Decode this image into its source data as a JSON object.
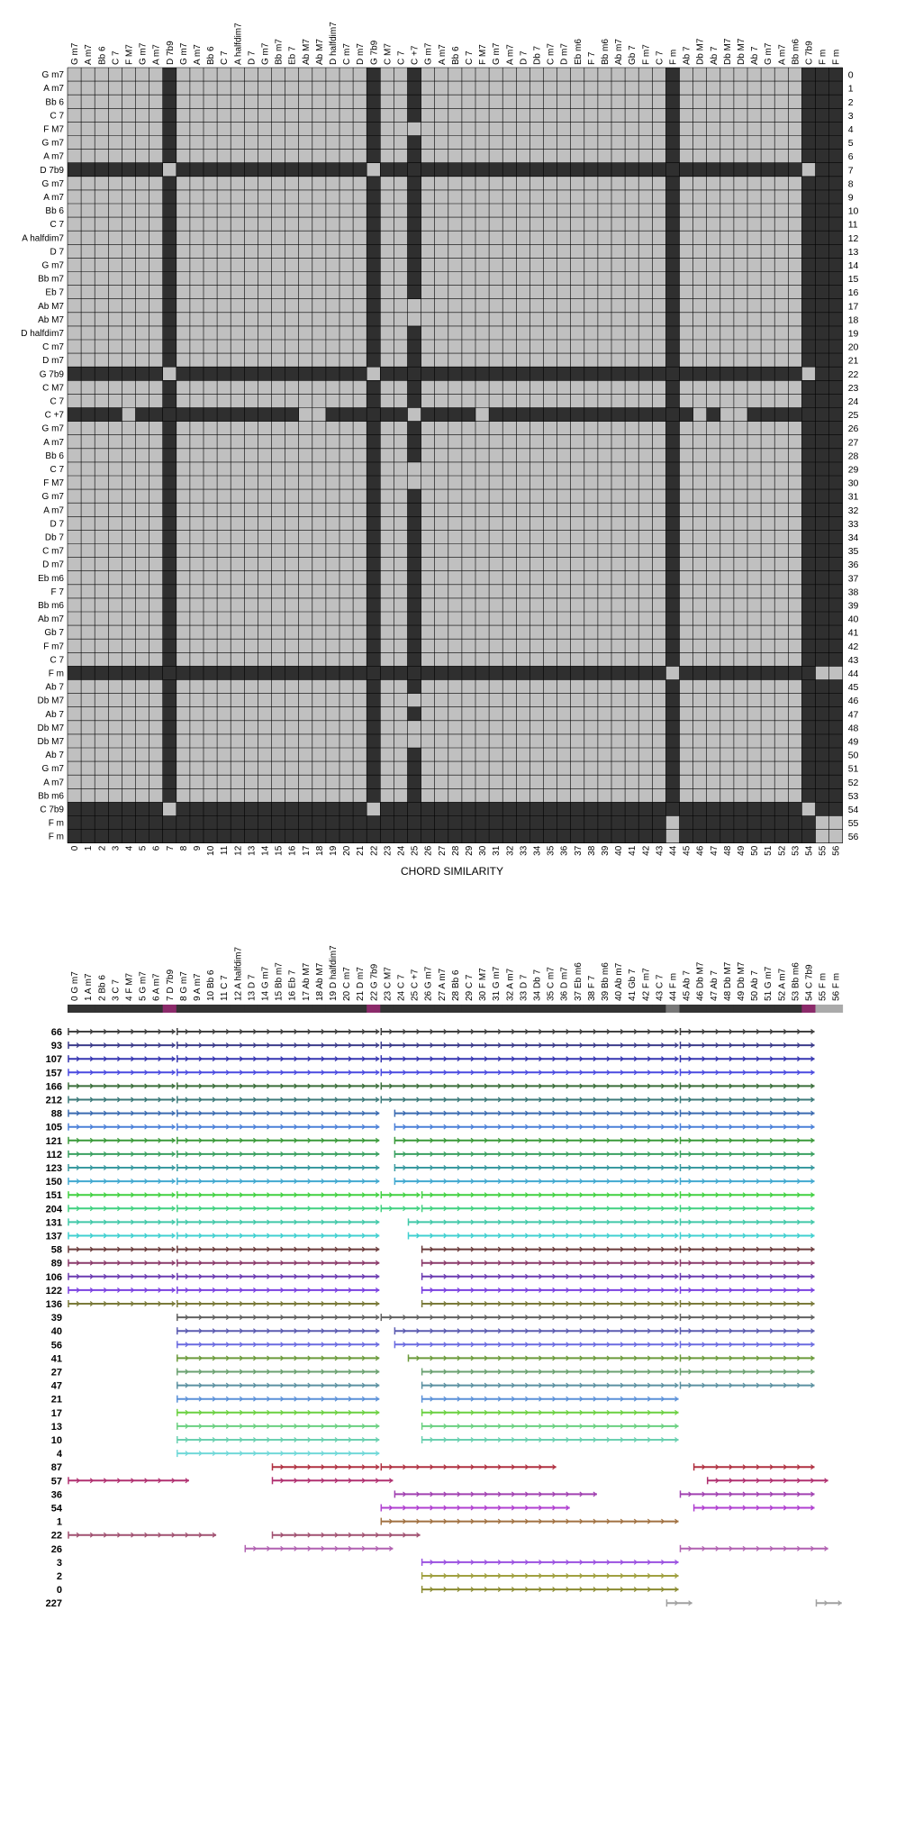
{
  "chart_data": [
    {
      "type": "heatmap",
      "title": "",
      "xlabel": "CHORD SIMILARITY",
      "ylabel": "",
      "chords": [
        "G m7",
        "A m7",
        "Bb 6",
        "C 7",
        "F M7",
        "G m7",
        "A m7",
        "D 7b9",
        "G m7",
        "A m7",
        "Bb 6",
        "C 7",
        "A halfdim7",
        "D 7",
        "G m7",
        "Bb m7",
        "Eb 7",
        "Ab M7",
        "Ab M7",
        "D halfdim7",
        "C m7",
        "D m7",
        "G 7b9",
        "C M7",
        "C 7",
        "C +7",
        "G m7",
        "A m7",
        "Bb 6",
        "C 7",
        "F M7",
        "G m7",
        "A m7",
        "D 7",
        "Db 7",
        "C m7",
        "D m7",
        "Eb m6",
        "F 7",
        "Bb m6",
        "Ab m7",
        "Gb 7",
        "F m7",
        "C 7",
        "F m",
        "Ab 7",
        "Db M7",
        "Ab 7",
        "Db M7",
        "Db M7",
        "Ab 7",
        "G m7",
        "A m7",
        "Bb m6",
        "C 7b9",
        "F m",
        "F m"
      ],
      "indices": [
        0,
        1,
        2,
        3,
        4,
        5,
        6,
        7,
        8,
        9,
        10,
        11,
        12,
        13,
        14,
        15,
        16,
        17,
        18,
        19,
        20,
        21,
        22,
        23,
        24,
        25,
        26,
        27,
        28,
        29,
        30,
        31,
        32,
        33,
        34,
        35,
        36,
        37,
        38,
        39,
        40,
        41,
        42,
        43,
        44,
        45,
        46,
        47,
        48,
        49,
        50,
        51,
        52,
        53,
        54,
        55,
        56
      ],
      "dark_rows_and_columns": [
        7,
        22,
        44,
        54,
        55,
        56
      ],
      "c_plus7_column_dark_rows": [
        0,
        1,
        2,
        3,
        5,
        6,
        7,
        8,
        9,
        10,
        11,
        12,
        13,
        14,
        15,
        16,
        19,
        20,
        21,
        22,
        23,
        24,
        26,
        27,
        28,
        31,
        32,
        33,
        34,
        35,
        36,
        37,
        38,
        39,
        40,
        41,
        42,
        43,
        44,
        45,
        47,
        50,
        51,
        52,
        53,
        54,
        55,
        56
      ],
      "c_plus7_row_light_columns": [
        4,
        17,
        18,
        25,
        30,
        46,
        48,
        49
      ],
      "light_cells_on_dark_bands": [
        [
          7,
          7
        ],
        [
          7,
          22
        ],
        [
          7,
          54
        ],
        [
          22,
          7
        ],
        [
          22,
          22
        ],
        [
          22,
          54
        ],
        [
          54,
          7
        ],
        [
          54,
          22
        ],
        [
          54,
          54
        ],
        [
          44,
          44
        ],
        [
          44,
          55
        ],
        [
          44,
          56
        ],
        [
          55,
          44
        ],
        [
          56,
          44
        ],
        [
          55,
          55
        ],
        [
          55,
          56
        ],
        [
          56,
          55
        ],
        [
          56,
          56
        ]
      ],
      "colors": {
        "match": "#c0c0c0",
        "no_match": "#2f2f2f",
        "gridline": "#000000"
      }
    },
    {
      "type": "arc",
      "title": "",
      "xlabel": "",
      "ylabel": "",
      "axis_labels": [
        "0 G m7",
        "1 A m7",
        "2 Bb 6",
        "3 C 7",
        "4 F M7",
        "5 G m7",
        "6 A m7",
        "7 D 7b9",
        "8 G m7",
        "9 A m7",
        "10 Bb 6",
        "11 C 7",
        "12 A halfdim7",
        "13 D 7",
        "14 G m7",
        "15 Bb m7",
        "16 Eb 7",
        "17 Ab M7",
        "18 Ab M7",
        "19 D halfdim7",
        "20 C m7",
        "21 D m7",
        "22 G 7b9",
        "23 C M7",
        "24 C 7",
        "25 C +7",
        "26 G m7",
        "27 A m7",
        "28 Bb 6",
        "29 C 7",
        "30 F M7",
        "31 G m7",
        "32 A m7",
        "33 D 7",
        "34 Db 7",
        "35 C m7",
        "36 D m7",
        "37 Eb m6",
        "38 F 7",
        "39 Bb m6",
        "40 Ab m7",
        "41 Gb 7",
        "42 F m7",
        "43 C 7",
        "44 F m",
        "45 Ab 7",
        "46 Db M7",
        "47 Ab 7",
        "48 Db M7",
        "49 Db M7",
        "50 Ab 7",
        "51 G m7",
        "52 A m7",
        "53 Bb m6",
        "54 C 7b9",
        "55 F m",
        "56 F m"
      ],
      "header_bar_colors": {
        "dark": "#333333",
        "magenta": "#8b2a6a",
        "gray": "#777777",
        "light": "#aaaaaa"
      },
      "header_bar_magenta_indices": [
        7,
        22,
        54
      ],
      "header_bar_gray_indices": [
        44
      ],
      "header_bar_light_indices": [
        55,
        56
      ],
      "rows": [
        {
          "label": "66",
          "color": "#404040",
          "segments": [
            [
              0,
              7
            ],
            [
              8,
              22
            ],
            [
              23,
              44
            ],
            [
              45,
              54
            ]
          ]
        },
        {
          "label": "93",
          "color": "#3b3b8a",
          "segments": [
            [
              0,
              7
            ],
            [
              8,
              22
            ],
            [
              23,
              44
            ],
            [
              45,
              54
            ]
          ]
        },
        {
          "label": "107",
          "color": "#3535b0",
          "segments": [
            [
              0,
              7
            ],
            [
              8,
              22
            ],
            [
              23,
              44
            ],
            [
              45,
              54
            ]
          ]
        },
        {
          "label": "157",
          "color": "#4a4ae0",
          "segments": [
            [
              0,
              7
            ],
            [
              8,
              22
            ],
            [
              23,
              44
            ],
            [
              45,
              54
            ]
          ]
        },
        {
          "label": "166",
          "color": "#3a6e3a",
          "segments": [
            [
              0,
              7
            ],
            [
              8,
              22
            ],
            [
              23,
              44
            ],
            [
              45,
              54
            ]
          ]
        },
        {
          "label": "212",
          "color": "#3c7a7a",
          "segments": [
            [
              0,
              7
            ],
            [
              8,
              22
            ],
            [
              23,
              44
            ],
            [
              45,
              54
            ]
          ]
        },
        {
          "label": "88",
          "color": "#3a6ab0",
          "segments": [
            [
              0,
              7
            ],
            [
              8,
              22
            ],
            [
              24,
              44
            ],
            [
              45,
              54
            ]
          ]
        },
        {
          "label": "105",
          "color": "#4a80d8",
          "segments": [
            [
              0,
              7
            ],
            [
              8,
              22
            ],
            [
              24,
              44
            ],
            [
              45,
              54
            ]
          ]
        },
        {
          "label": "121",
          "color": "#3a9a3a",
          "segments": [
            [
              0,
              7
            ],
            [
              8,
              22
            ],
            [
              24,
              44
            ],
            [
              45,
              54
            ]
          ]
        },
        {
          "label": "112",
          "color": "#3aa060",
          "segments": [
            [
              0,
              7
            ],
            [
              8,
              22
            ],
            [
              24,
              44
            ],
            [
              45,
              54
            ]
          ]
        },
        {
          "label": "123",
          "color": "#3a9aa0",
          "segments": [
            [
              0,
              7
            ],
            [
              8,
              22
            ],
            [
              24,
              44
            ],
            [
              45,
              54
            ]
          ]
        },
        {
          "label": "150",
          "color": "#40a8d0",
          "segments": [
            [
              0,
              7
            ],
            [
              8,
              22
            ],
            [
              24,
              44
            ],
            [
              45,
              54
            ]
          ]
        },
        {
          "label": "151",
          "color": "#40d040",
          "segments": [
            [
              0,
              7
            ],
            [
              8,
              22
            ],
            [
              23,
              25
            ],
            [
              26,
              44
            ],
            [
              45,
              54
            ]
          ]
        },
        {
          "label": "204",
          "color": "#40d080",
          "segments": [
            [
              0,
              7
            ],
            [
              8,
              22
            ],
            [
              23,
              25
            ],
            [
              26,
              44
            ],
            [
              45,
              54
            ]
          ]
        },
        {
          "label": "131",
          "color": "#40c8a8",
          "segments": [
            [
              0,
              7
            ],
            [
              8,
              22
            ],
            [
              25,
              44
            ],
            [
              45,
              54
            ]
          ]
        },
        {
          "label": "137",
          "color": "#40d0d0",
          "segments": [
            [
              0,
              7
            ],
            [
              8,
              22
            ],
            [
              25,
              44
            ],
            [
              45,
              54
            ]
          ]
        },
        {
          "label": "58",
          "color": "#6a3a3a",
          "segments": [
            [
              0,
              7
            ],
            [
              8,
              22
            ],
            [
              26,
              44
            ],
            [
              45,
              54
            ]
          ]
        },
        {
          "label": "89",
          "color": "#8a3a6a",
          "segments": [
            [
              0,
              7
            ],
            [
              8,
              22
            ],
            [
              26,
              44
            ],
            [
              45,
              54
            ]
          ]
        },
        {
          "label": "106",
          "color": "#6a3ab0",
          "segments": [
            [
              0,
              7
            ],
            [
              8,
              22
            ],
            [
              26,
              44
            ],
            [
              45,
              54
            ]
          ]
        },
        {
          "label": "122",
          "color": "#7a40e0",
          "segments": [
            [
              0,
              7
            ],
            [
              8,
              22
            ],
            [
              26,
              44
            ],
            [
              45,
              54
            ]
          ]
        },
        {
          "label": "136",
          "color": "#7a7a3a",
          "segments": [
            [
              0,
              7
            ],
            [
              8,
              22
            ],
            [
              26,
              44
            ],
            [
              45,
              54
            ]
          ]
        },
        {
          "label": "39",
          "color": "#606060",
          "segments": [
            [
              8,
              22
            ],
            [
              23,
              44
            ],
            [
              45,
              54
            ]
          ]
        },
        {
          "label": "40",
          "color": "#5a5ab0",
          "segments": [
            [
              8,
              22
            ],
            [
              24,
              44
            ],
            [
              45,
              54
            ]
          ]
        },
        {
          "label": "56",
          "color": "#6a6ae0",
          "segments": [
            [
              8,
              22
            ],
            [
              24,
              44
            ],
            [
              45,
              54
            ]
          ]
        },
        {
          "label": "41",
          "color": "#6a9a3a",
          "segments": [
            [
              8,
              22
            ],
            [
              25,
              44
            ],
            [
              45,
              54
            ]
          ]
        },
        {
          "label": "27",
          "color": "#6aa070",
          "segments": [
            [
              8,
              22
            ],
            [
              26,
              44
            ],
            [
              45,
              54
            ]
          ]
        },
        {
          "label": "47",
          "color": "#5a90a0",
          "segments": [
            [
              8,
              22
            ],
            [
              26,
              44
            ],
            [
              45,
              54
            ]
          ]
        },
        {
          "label": "21",
          "color": "#5a90d8",
          "segments": [
            [
              8,
              22
            ],
            [
              26,
              44
            ]
          ]
        },
        {
          "label": "17",
          "color": "#6ad040",
          "segments": [
            [
              8,
              22
            ],
            [
              26,
              44
            ]
          ]
        },
        {
          "label": "13",
          "color": "#6ad080",
          "segments": [
            [
              8,
              22
            ],
            [
              26,
              44
            ]
          ]
        },
        {
          "label": "10",
          "color": "#6ad0b0",
          "segments": [
            [
              8,
              22
            ],
            [
              26,
              44
            ]
          ]
        },
        {
          "label": "4",
          "color": "#70d8d8",
          "segments": [
            [
              8,
              22
            ]
          ]
        },
        {
          "label": "87",
          "color": "#b03040",
          "segments": [
            [
              15,
              22
            ],
            [
              23,
              35
            ],
            [
              46,
              54
            ]
          ]
        },
        {
          "label": "57",
          "color": "#b03070",
          "segments": [
            [
              0,
              8
            ],
            [
              15,
              23
            ],
            [
              47,
              55
            ]
          ]
        },
        {
          "label": "36",
          "color": "#a040b0",
          "segments": [
            [
              24,
              38
            ],
            [
              45,
              54
            ]
          ]
        },
        {
          "label": "54",
          "color": "#b040d0",
          "segments": [
            [
              23,
              36
            ],
            [
              46,
              54
            ]
          ]
        },
        {
          "label": "1",
          "color": "#a07040",
          "segments": [
            [
              23,
              44
            ]
          ]
        },
        {
          "label": "22",
          "color": "#a05070",
          "segments": [
            [
              0,
              10
            ],
            [
              15,
              25
            ]
          ]
        },
        {
          "label": "26",
          "color": "#b060b0",
          "segments": [
            [
              13,
              23
            ],
            [
              45,
              55
            ]
          ]
        },
        {
          "label": "3",
          "color": "#9a50e0",
          "segments": [
            [
              26,
              44
            ]
          ]
        },
        {
          "label": "2",
          "color": "#a0a040",
          "segments": [
            [
              26,
              44
            ]
          ]
        },
        {
          "label": "0",
          "color": "#8a8a30",
          "segments": [
            [
              26,
              44
            ]
          ]
        },
        {
          "label": "227",
          "color": "#a0a0a0",
          "segments": [
            [
              44,
              45
            ],
            [
              55,
              56
            ]
          ]
        }
      ]
    }
  ]
}
